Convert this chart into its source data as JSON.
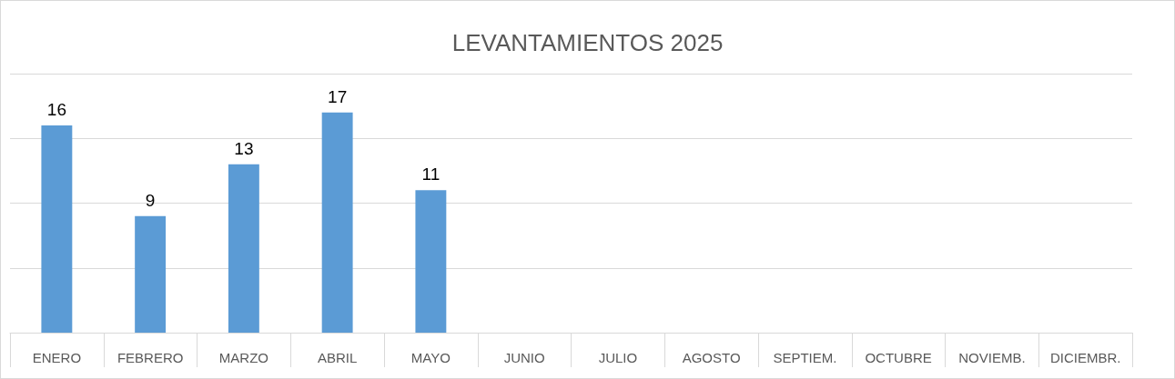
{
  "chart_data": {
    "type": "bar",
    "title": "LEVANTAMIENTOS 2025",
    "categories": [
      "ENERO",
      "FEBRERO",
      "MARZO",
      "ABRIL",
      "MAYO",
      "JUNIO",
      "JULIO",
      "AGOSTO",
      "SEPTIEM.",
      "OCTUBRE",
      "NOVIEMB.",
      "DICIEMBR."
    ],
    "values": [
      16,
      9,
      13,
      17,
      11,
      null,
      null,
      null,
      null,
      null,
      null,
      null
    ],
    "color": "#5b9bd5",
    "ylim": [
      0,
      20
    ],
    "yticks": [
      {
        "value": 0,
        "label": null
      },
      {
        "value": 5,
        "label": null
      },
      {
        "value": 10,
        "label": null
      },
      {
        "value": 15,
        "label": null
      },
      {
        "value": 20,
        "label": null
      }
    ],
    "tick_labels": "x",
    "grid": "y",
    "data_labels": true
  }
}
